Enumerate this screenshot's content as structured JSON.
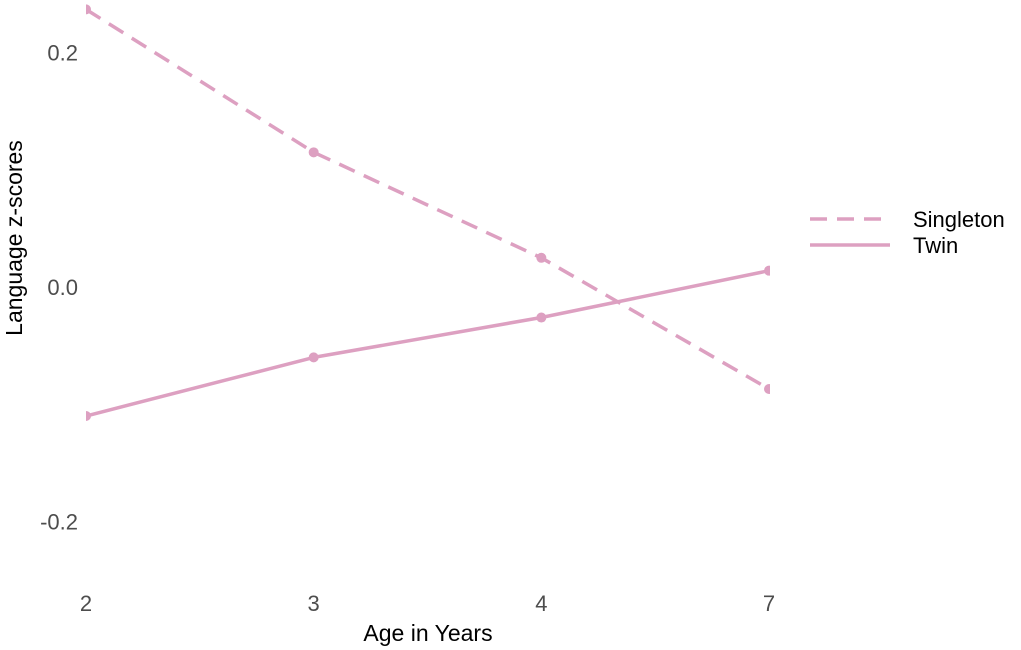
{
  "chart_data": {
    "type": "line",
    "title": "",
    "xlabel": "Age in Years",
    "ylabel": "Language z-scores",
    "categories": [
      "2",
      "3",
      "4",
      "7"
    ],
    "ylim": [
      -0.25,
      0.245
    ],
    "y_ticks": [
      -0.2,
      0.0,
      0.2
    ],
    "y_tick_labels": [
      "-0.2",
      "0.0",
      "0.2"
    ],
    "grid": false,
    "legend_position": "right",
    "series": [
      {
        "name": "Singleton",
        "values": [
          0.237,
          0.115,
          0.025,
          -0.087
        ],
        "line_style": "dashed",
        "color": "#dda0c1"
      },
      {
        "name": "Twin",
        "values": [
          -0.11,
          -0.06,
          -0.026,
          0.014
        ],
        "line_style": "solid",
        "color": "#dda0c1"
      }
    ]
  }
}
